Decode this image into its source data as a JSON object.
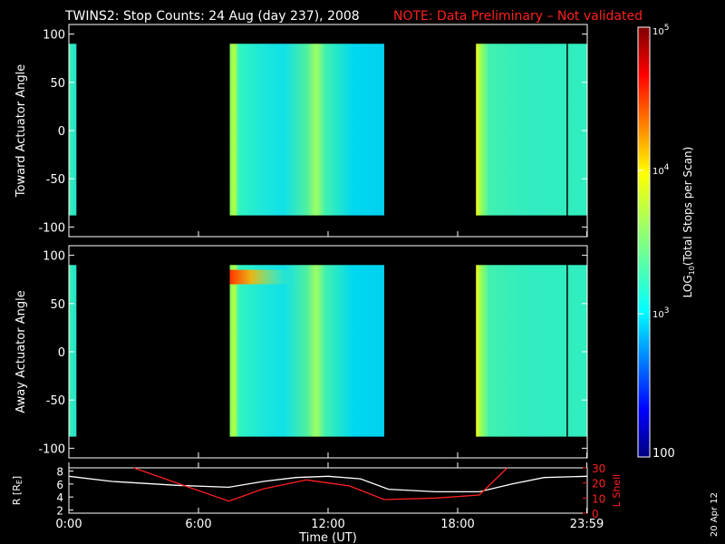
{
  "title": "TWINS2: Stop Counts: 24 Aug (day 237), 2008",
  "note": "NOTE: Data Preliminary – Not validated",
  "date_stamp": "20 Apr 12",
  "colors": {
    "note": "#ff2020",
    "r_curve": "#ffffff",
    "lshell_curve": "#ff2020",
    "background": "#000000"
  },
  "chart_data": [
    {
      "type": "heatmap",
      "ylabel": "Toward Actuator Angle",
      "ylim": [
        -110,
        110
      ],
      "yticks": [
        100,
        50,
        0,
        -50,
        -100
      ],
      "xlim_hours": [
        0,
        24
      ],
      "data_blocks_hours": [
        [
          0,
          0.35
        ],
        [
          7.45,
          14.6
        ],
        [
          18.85,
          24
        ]
      ],
      "angle_range": [
        -88,
        90
      ]
    },
    {
      "type": "heatmap",
      "ylabel": "Away Actuator Angle",
      "ylim": [
        -110,
        110
      ],
      "yticks": [
        100,
        50,
        0,
        -50,
        -100
      ],
      "xlim_hours": [
        0,
        24
      ],
      "data_blocks_hours": [
        [
          0,
          0.35
        ],
        [
          7.45,
          14.6
        ],
        [
          18.85,
          24
        ]
      ],
      "angle_range": [
        -88,
        90
      ],
      "hotspot_angle_range": [
        70,
        85
      ]
    },
    {
      "type": "line",
      "ylabel_left": "R [R",
      "ylabel_left_sub": "E",
      "ylabel_right": "L Shell",
      "ylim_left": [
        1.5,
        8.5
      ],
      "yticks_left": [
        8,
        6,
        4,
        2
      ],
      "ylim_right": [
        0,
        30
      ],
      "yticks_right": [
        30,
        20,
        10,
        0
      ],
      "xlabel": "Time (UT)",
      "xticks": [
        {
          "h": 0,
          "label": "0:00"
        },
        {
          "h": 6,
          "label": "6:00"
        },
        {
          "h": 12,
          "label": "12:00"
        },
        {
          "h": 18,
          "label": "18:00"
        },
        {
          "h": 23.98,
          "label": "23:59"
        }
      ],
      "series": [
        {
          "axis": "left",
          "x": [
            0,
            2,
            5,
            7.4,
            9,
            10.5,
            12,
            13.5,
            14.8,
            17,
            19,
            20.5,
            22,
            23.98
          ],
          "values": [
            7.2,
            6.4,
            5.8,
            5.5,
            6.4,
            7.0,
            7.2,
            6.8,
            5.2,
            4.8,
            4.8,
            6.0,
            7.0,
            7.2
          ]
        },
        {
          "axis": "right",
          "x": [
            3,
            5,
            7.4,
            9,
            11,
            13,
            14.6,
            17,
            19,
            20.3
          ],
          "values": [
            30,
            20,
            8,
            16,
            22,
            18,
            9,
            10,
            12,
            30
          ]
        }
      ]
    }
  ],
  "colorbar": {
    "label_main": "LOG",
    "label_sub": "10",
    "label_rest": "(Total Stops per Scan)",
    "scale": "log",
    "range": [
      100,
      100000
    ],
    "ticks": [
      {
        "v": 100000,
        "label": "10",
        "sup": "5"
      },
      {
        "v": 10000,
        "label": "10",
        "sup": "4"
      },
      {
        "v": 1000,
        "label": "10",
        "sup": "3"
      },
      {
        "v": 100,
        "label": "100",
        "sup": ""
      }
    ]
  }
}
